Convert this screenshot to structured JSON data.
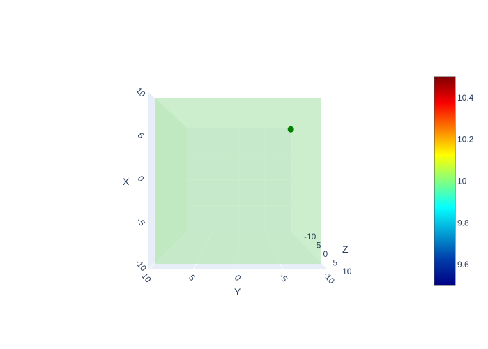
{
  "chart_data": {
    "type": "scatter",
    "scene": {
      "x_axis": {
        "title": "X",
        "range": [
          -10,
          10
        ],
        "ticks": [
          "10",
          "5",
          "0",
          "-5",
          "-10"
        ]
      },
      "y_axis": {
        "title": "Y",
        "range": [
          -10,
          10
        ],
        "ticks": [
          "10",
          "5",
          "0",
          "-5",
          "-10"
        ]
      },
      "z_axis": {
        "title": "Z",
        "range": [
          -10,
          10
        ],
        "ticks": [
          "-10",
          "-5",
          "0",
          "5",
          "10"
        ]
      },
      "grid": true,
      "volume_color": "#b9e8b9"
    },
    "points": [
      {
        "x": 6.2,
        "y": -6.4,
        "z": -10,
        "color": "#008000"
      }
    ],
    "colorbar": {
      "ticks": [
        "10.4",
        "10.2",
        "10",
        "9.8",
        "9.6"
      ],
      "range": [
        9.5,
        10.5
      ],
      "colorscale": "jet"
    }
  }
}
